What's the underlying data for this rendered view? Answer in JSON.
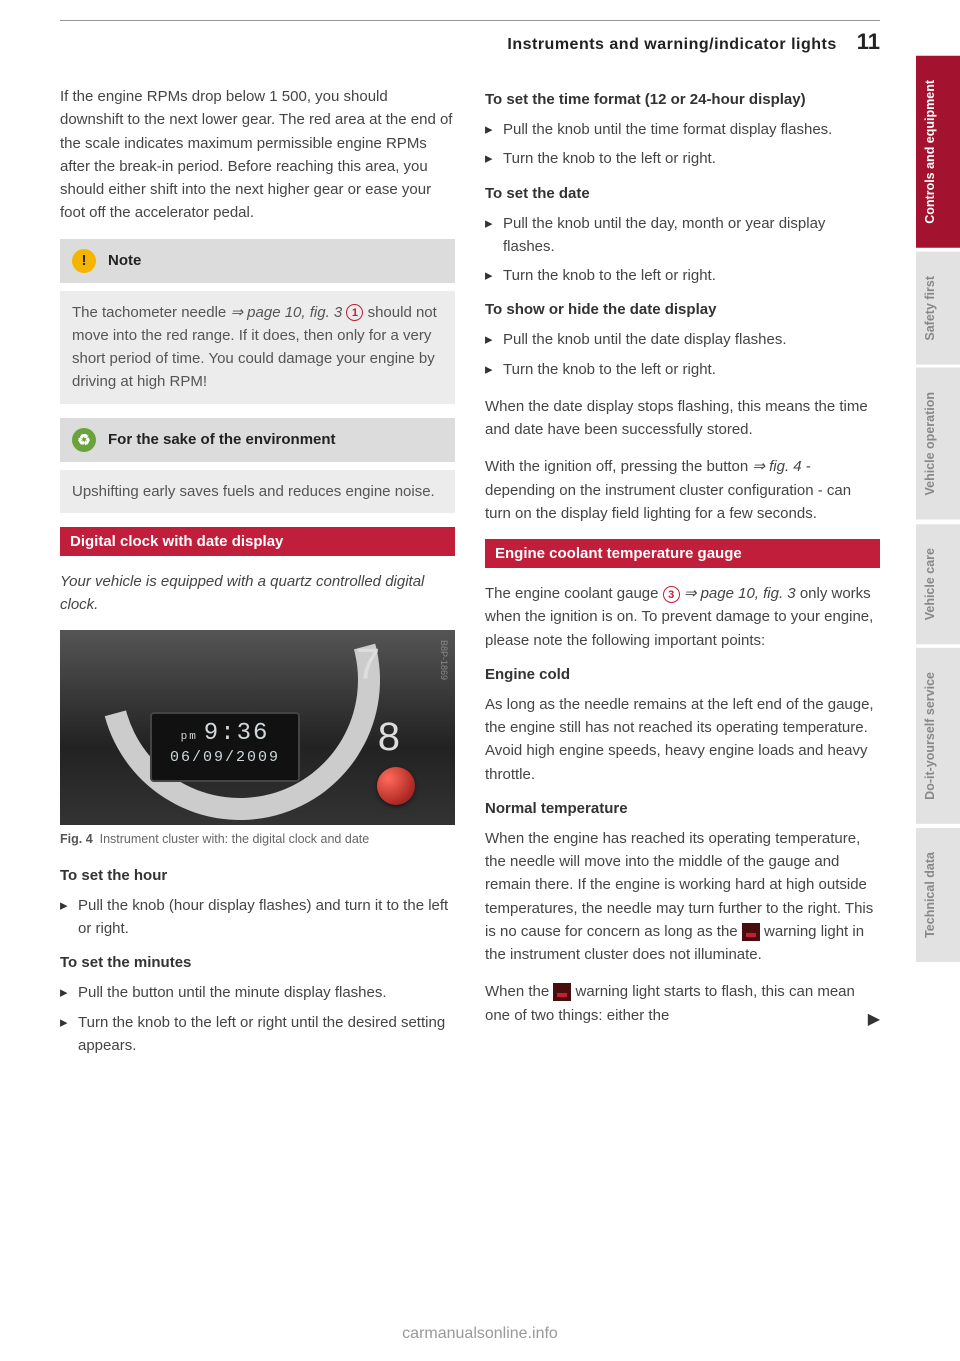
{
  "header": {
    "title": "Instruments and warning/indicator lights",
    "page": "11"
  },
  "left": {
    "intro": "If the engine RPMs drop below 1 500, you should downshift to the next lower gear. The red area at the end of the scale indicates maximum permissible engine RPMs after the break-in period. Before reaching this area, you should either shift into the next higher gear or ease your foot off the accelerator pedal.",
    "note": {
      "title": "Note",
      "body_pre": "The tachometer needle ",
      "body_ref": "⇒ page 10, fig. 3",
      "body_circled": "1",
      "body_post": " should not move into the red range. If it does, then only for a very short period of time. You could damage your engine by driving at high RPM!",
      "icon_glyph": "!",
      "icon_bg": "#f4b400"
    },
    "env": {
      "title": "For the sake of the environment",
      "body": "Upshifting early saves fuels and reduces engine noise.",
      "icon_glyph": "♻",
      "icon_bg": "#6aa33e"
    },
    "section1": "Digital clock with date display",
    "section1_intro": "Your vehicle is equipped with a quartz controlled digital clock.",
    "fig": {
      "time_prefix": "pm",
      "time": "9:36",
      "date": "06/09/2009",
      "num7": "7",
      "num8": "8",
      "code": "B8P-1869",
      "caption_label": "Fig. 4",
      "caption": "Instrument cluster with: the digital clock and date"
    },
    "h_hour": "To set the hour",
    "hour_items": [
      "Pull the knob (hour display flashes) and turn it to the left or right."
    ],
    "h_min": "To set the minutes",
    "min_items": [
      "Pull the button until the minute display flashes.",
      "Turn the knob to the left or right until the desired setting appears."
    ]
  },
  "right": {
    "h_format": "To set the time format (12 or 24-hour display)",
    "format_items": [
      "Pull the knob until the time format display flashes.",
      "Turn the knob to the left or right."
    ],
    "h_date": "To set the date",
    "date_items": [
      "Pull the knob until the day, month or year display flashes.",
      "Turn the knob to the left or right."
    ],
    "h_showhide": "To show or hide the date display",
    "showhide_items": [
      "Pull the knob until the date display flashes.",
      "Turn the knob to the left or right."
    ],
    "para_stored": "When the date display stops flashing, this means the time and date have been successfully stored.",
    "para_ignition_pre": "With the ignition off, pressing the button ",
    "para_ignition_ref": "⇒ fig. 4",
    "para_ignition_post": " - depending on the instrument cluster configuration - can turn on the display field lighting for a few seconds.",
    "section2": "Engine coolant temperature gauge",
    "coolant_intro_pre": "The engine coolant gauge ",
    "coolant_circled": "3",
    "coolant_intro_ref": " ⇒ page 10, fig. 3",
    "coolant_intro_post": " only works when the ignition is on. To prevent damage to your engine, please note the following important points:",
    "h_cold": "Engine cold",
    "cold_para": "As long as the needle remains at the left end of the gauge, the engine still has not reached its operating temperature. Avoid high engine speeds, heavy engine loads and heavy throttle.",
    "h_normal": "Normal temperature",
    "normal_para_pre": "When the engine has reached its operating temperature, the needle will move into the middle of the gauge and remain there. If the engine is working hard at high outside temperatures, the needle may turn further to the right. This is no cause for concern as long as the ",
    "normal_para_post": " warning light in the instrument cluster does not illuminate.",
    "flash_para_pre": "When the ",
    "flash_para_post": " warning light starts to flash, this can mean one of two things: either the"
  },
  "tabs": [
    {
      "label": "Controls and equipment",
      "active": true
    },
    {
      "label": "Safety first",
      "active": false
    },
    {
      "label": "Vehicle operation",
      "active": false
    },
    {
      "label": "Vehicle care",
      "active": false
    },
    {
      "label": "Do-it-yourself service",
      "active": false
    },
    {
      "label": "Technical data",
      "active": false
    }
  ],
  "footer": "carmanualsonline.info"
}
